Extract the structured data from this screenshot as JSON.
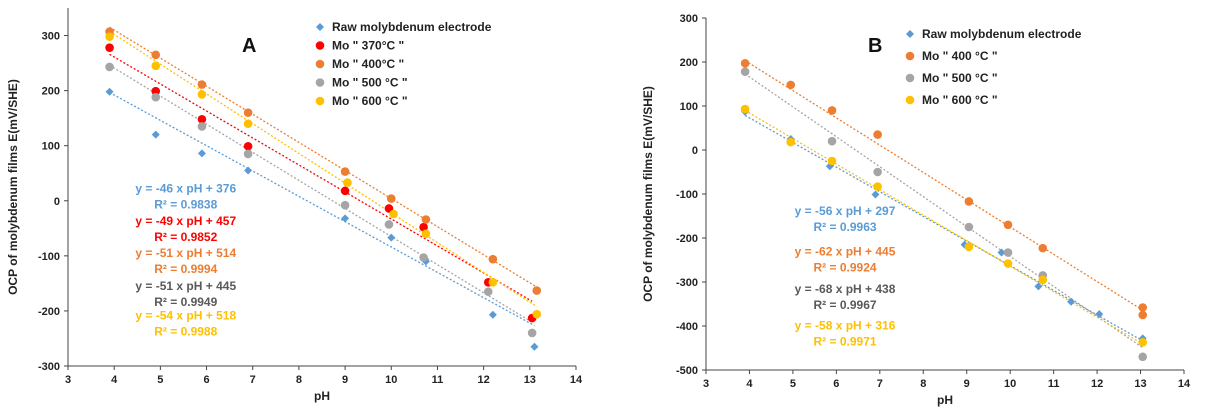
{
  "chart_data": [
    {
      "type": "scatter",
      "panel_label": "A",
      "xlabel": "pH",
      "ylabel": "OCP of molybdenum films E(mV/SHE)",
      "xlim": [
        3,
        14
      ],
      "ylim": [
        -300,
        350
      ],
      "xticks": [
        3,
        4,
        5,
        6,
        7,
        8,
        9,
        10,
        11,
        12,
        13,
        14
      ],
      "yticks": [
        -300,
        -200,
        -100,
        0,
        100,
        200,
        300
      ],
      "legend_position": "top-right",
      "series": [
        {
          "name": "Raw molybdenum electrode",
          "color": "#5b9bd5",
          "marker": "diamond",
          "x": [
            3.9,
            4.9,
            5.9,
            6.9,
            9.0,
            10.0,
            10.75,
            12.2,
            13.1
          ],
          "y": [
            198,
            120,
            86,
            55,
            -32,
            -67,
            -110,
            -207,
            -265
          ],
          "trend": {
            "slope": -46,
            "intercept": 376
          }
        },
        {
          "name": "Mo \" 370°C \"",
          "color": "#ff0000",
          "marker": "circle",
          "x": [
            3.9,
            4.9,
            5.9,
            6.9,
            9.0,
            9.95,
            10.7,
            12.1,
            13.05
          ],
          "y": [
            278,
            199,
            148,
            99,
            18,
            -14,
            -48,
            -148,
            -213
          ],
          "trend": {
            "slope": -49,
            "intercept": 457
          }
        },
        {
          "name": "Mo \" 400°C \"",
          "color": "#ed7d31",
          "marker": "circle",
          "x": [
            3.9,
            4.9,
            5.9,
            6.9,
            9.0,
            10.0,
            10.75,
            12.2,
            13.15
          ],
          "y": [
            307,
            265,
            211,
            160,
            53,
            4,
            -34,
            -106,
            -163
          ],
          "trend": {
            "slope": -51,
            "intercept": 514
          }
        },
        {
          "name": "Mo \" 500 °C \"",
          "color": "#a5a5a5",
          "marker": "circle",
          "x": [
            3.9,
            4.9,
            5.9,
            6.9,
            9.0,
            9.95,
            10.7,
            12.1,
            13.05
          ],
          "y": [
            243,
            188,
            135,
            85,
            -8,
            -43,
            -103,
            -165,
            -240
          ],
          "trend": {
            "slope": -51,
            "intercept": 445
          }
        },
        {
          "name": "Mo \" 600 °C \"",
          "color": "#ffc000",
          "marker": "circle",
          "x": [
            3.9,
            4.9,
            5.9,
            6.9,
            9.05,
            10.05,
            10.75,
            12.2,
            13.15
          ],
          "y": [
            298,
            245,
            193,
            140,
            33,
            -24,
            -60,
            -148,
            -206
          ],
          "trend": {
            "slope": -54,
            "intercept": 518
          }
        }
      ],
      "annotations": [
        {
          "eq": "y = -46 x pH + 376",
          "r2": "R² = 0.9838",
          "color": "#5b9bd5",
          "at": [
            5.55,
            15
          ]
        },
        {
          "eq": "y = -49 x pH + 457",
          "r2": "R² = 0.9852",
          "color": "#ff0000",
          "at": [
            5.55,
            -44
          ]
        },
        {
          "eq": "y = -51 x pH + 514",
          "r2": "R² = 0.9994",
          "color": "#ed7d31",
          "at": [
            5.55,
            -102
          ]
        },
        {
          "eq": "y = -51 x pH + 445",
          "r2": "R² = 0.9949",
          "color": "#595959",
          "at": [
            5.55,
            -162
          ]
        },
        {
          "eq": "y = -54 x pH + 518",
          "r2": "R² = 0.9988",
          "color": "#ffc000",
          "at": [
            5.55,
            -216
          ]
        }
      ]
    },
    {
      "type": "scatter",
      "panel_label": "B",
      "xlabel": "pH",
      "ylabel": "OCP of molybdenum films E(mV/SHE)",
      "xlim": [
        3,
        14
      ],
      "ylim": [
        -500,
        300
      ],
      "xticks": [
        3,
        4,
        5,
        6,
        7,
        8,
        9,
        10,
        11,
        12,
        13,
        14
      ],
      "yticks": [
        -500,
        -400,
        -300,
        -200,
        -100,
        0,
        100,
        200,
        300
      ],
      "legend_position": "top-right",
      "series": [
        {
          "name": "Raw molybdenum electrode",
          "color": "#5b9bd5",
          "marker": "diamond",
          "x": [
            3.9,
            4.95,
            5.85,
            6.9,
            8.95,
            9.8,
            10.65,
            11.4,
            12.05,
            13.05
          ],
          "y": [
            87,
            25,
            -37,
            -101,
            -215,
            -233,
            -310,
            -345,
            -373,
            -428
          ],
          "trend": {
            "slope": -56,
            "intercept": 297
          }
        },
        {
          "name": "Mo \" 400 °C \"",
          "color": "#ed7d31",
          "marker": "circle",
          "x": [
            3.9,
            4.95,
            5.9,
            6.95,
            9.05,
            9.95,
            10.75,
            13.05,
            13.05
          ],
          "y": [
            197,
            148,
            90,
            35,
            -117,
            -170,
            -223,
            -358,
            -375
          ],
          "trend": {
            "slope": -62,
            "intercept": 445
          }
        },
        {
          "name": "Mo \" 500 °C \"",
          "color": "#a5a5a5",
          "marker": "circle",
          "x": [
            3.9,
            5.9,
            6.95,
            9.05,
            9.95,
            10.75,
            13.05
          ],
          "y": [
            178,
            20,
            -50,
            -175,
            -233,
            -285,
            -470
          ],
          "trend": {
            "slope": -68,
            "intercept": 438
          }
        },
        {
          "name": "Mo \" 600 °C \"",
          "color": "#ffc000",
          "marker": "circle",
          "x": [
            3.9,
            4.95,
            5.9,
            6.95,
            9.05,
            9.95,
            10.75,
            13.05
          ],
          "y": [
            93,
            18,
            -25,
            -83,
            -220,
            -258,
            -295,
            -437
          ],
          "trend": {
            "slope": -58,
            "intercept": 316
          }
        }
      ],
      "annotations": [
        {
          "eq": "y = -56 x pH + 297",
          "r2": "R² = 0.9963",
          "color": "#5b9bd5",
          "at": [
            6.2,
            -148
          ]
        },
        {
          "eq": "y = -62 x pH + 445",
          "r2": "R² = 0.9924",
          "color": "#ed7d31",
          "at": [
            6.2,
            -240
          ]
        },
        {
          "eq": "y = -68 x pH + 438",
          "r2": "R² = 0.9967",
          "color": "#595959",
          "at": [
            6.2,
            -325
          ]
        },
        {
          "eq": "y = -58 x pH + 316",
          "r2": "R² = 0.9971",
          "color": "#ffc000",
          "at": [
            6.2,
            -408
          ]
        }
      ]
    }
  ]
}
